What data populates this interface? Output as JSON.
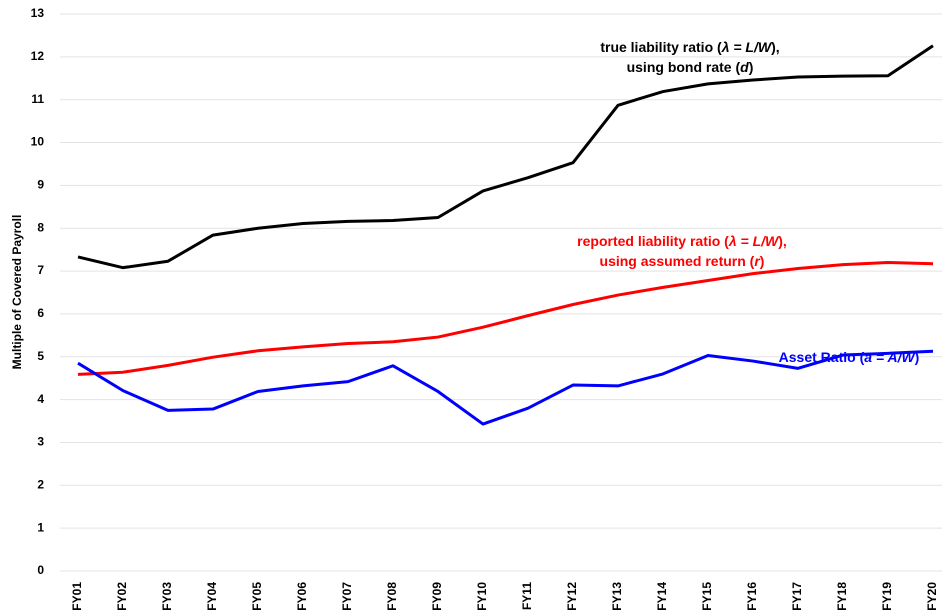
{
  "chart_data": {
    "type": "line",
    "y_label": "Multiple of Covered Payroll",
    "categories": [
      "FY01",
      "FY02",
      "FY03",
      "FY04",
      "FY05",
      "FY06",
      "FY07",
      "FY08",
      "FY09",
      "FY10",
      "FY11",
      "FY12",
      "FY13",
      "FY14",
      "FY15",
      "FY16",
      "FY17",
      "FY18",
      "FY19",
      "FY20"
    ],
    "ylim": [
      0,
      13
    ],
    "yticks": [
      0,
      1,
      2,
      3,
      4,
      5,
      6,
      7,
      8,
      9,
      10,
      11,
      12,
      13
    ],
    "grid": true,
    "series": [
      {
        "name": "true liability ratio",
        "color": "#000000",
        "values": [
          7.33,
          7.08,
          7.23,
          7.84,
          8.0,
          8.11,
          8.16,
          8.18,
          8.25,
          8.87,
          9.18,
          9.53,
          10.87,
          11.19,
          11.37,
          11.46,
          11.53,
          11.55,
          11.56,
          12.26
        ],
        "annotation": [
          [
            {
              "text": "true liability ratio (",
              "italic": false
            },
            {
              "text": "λ = L/W",
              "italic": true
            },
            {
              "text": "),",
              "italic": false
            }
          ],
          [
            {
              "text": "using bond rate (",
              "italic": false
            },
            {
              "text": "d",
              "italic": true
            },
            {
              "text": ")",
              "italic": false
            }
          ]
        ]
      },
      {
        "name": "reported liability ratio",
        "color": "#ff0000",
        "values": [
          4.59,
          4.64,
          4.8,
          4.99,
          5.14,
          5.23,
          5.31,
          5.35,
          5.46,
          5.69,
          5.96,
          6.22,
          6.44,
          6.62,
          6.78,
          6.94,
          7.06,
          7.15,
          7.2,
          7.17
        ],
        "annotation": [
          [
            {
              "text": "reported liability ratio (",
              "italic": false
            },
            {
              "text": "λ = L/W",
              "italic": true
            },
            {
              "text": "),",
              "italic": false
            }
          ],
          [
            {
              "text": "using assumed return (",
              "italic": false
            },
            {
              "text": "r",
              "italic": true
            },
            {
              "text": ")",
              "italic": false
            }
          ]
        ]
      },
      {
        "name": "Asset Ratio",
        "color": "#0000ff",
        "values": [
          4.85,
          4.21,
          3.75,
          3.78,
          4.19,
          4.32,
          4.42,
          4.79,
          4.19,
          3.43,
          3.8,
          4.34,
          4.32,
          4.6,
          5.03,
          4.9,
          4.73,
          5.04,
          5.08,
          5.13
        ],
        "annotation": [
          [
            {
              "text": "Asset Ratio (",
              "italic": false
            },
            {
              "text": "a = A/W",
              "italic": true
            },
            {
              "text": ")",
              "italic": false
            }
          ]
        ]
      }
    ]
  }
}
